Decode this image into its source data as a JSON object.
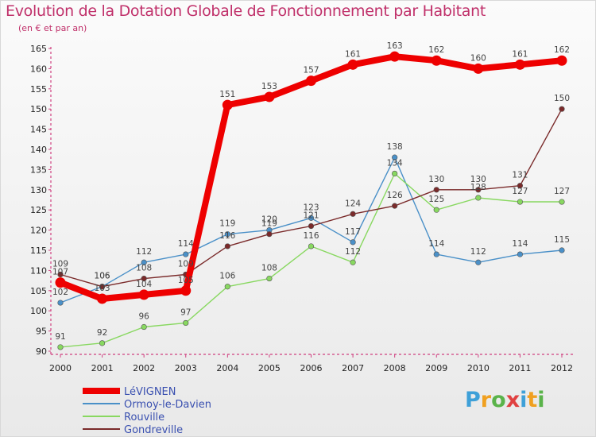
{
  "chart_data": {
    "type": "line",
    "title": "Evolution de la Dotation Globale de Fonctionnement par Habitant",
    "subtitle": "(en € et par an)",
    "xlabel": "",
    "ylabel": "",
    "x": [
      "2000",
      "2001",
      "2002",
      "2003",
      "2004",
      "2005",
      "2006",
      "2007",
      "2008",
      "2009",
      "2010",
      "2011",
      "2012"
    ],
    "ylim": [
      90,
      165
    ],
    "yticks": [
      90,
      95,
      100,
      105,
      110,
      115,
      120,
      125,
      130,
      135,
      140,
      145,
      150,
      155,
      160,
      165
    ],
    "series": [
      {
        "name": "LéVIGNEN",
        "color": "#ee0000",
        "values": [
          107,
          103,
          104,
          105,
          151,
          153,
          157,
          161,
          163,
          162,
          160,
          161,
          162
        ]
      },
      {
        "name": "Ormoy-le-Davien",
        "color": "#4a90c8",
        "values": [
          102,
          106,
          112,
          114,
          119,
          120,
          123,
          117,
          138,
          114,
          112,
          114,
          115
        ]
      },
      {
        "name": "Rouville",
        "color": "#88d860",
        "values": [
          91,
          92,
          96,
          97,
          106,
          108,
          116,
          112,
          134,
          125,
          128,
          127,
          127
        ]
      },
      {
        "name": "Gondreville",
        "color": "#7a2a2a",
        "values": [
          109,
          106,
          108,
          109,
          116,
          119,
          121,
          124,
          126,
          130,
          130,
          131,
          150
        ]
      }
    ],
    "legend_position": "bottom-left"
  },
  "branding": {
    "letters": [
      "P",
      "r",
      "o",
      "x",
      "i",
      "t",
      "i"
    ]
  }
}
